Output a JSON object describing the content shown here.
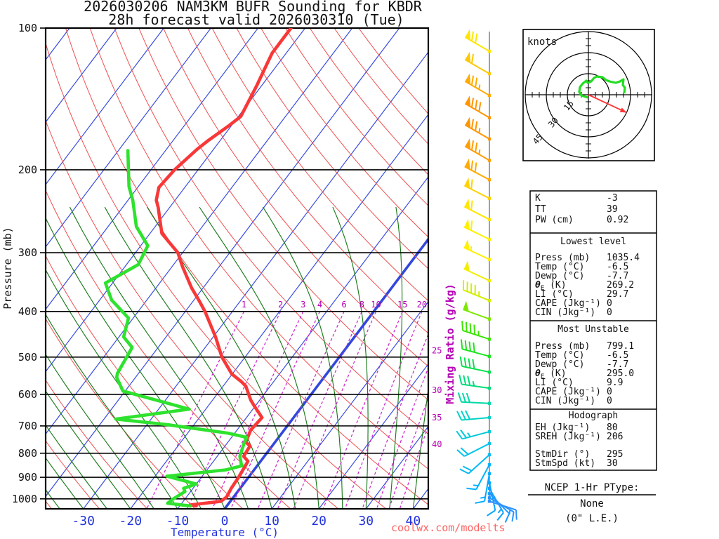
{
  "title": {
    "line1": "2026030206 NAM3KM BUFR Sounding for KBDR",
    "line2": "28h forecast valid 2026030310 (Tue)"
  },
  "watermark": "coolwx.com/modelts",
  "axes": {
    "pressure_label": "Pressure (mb)",
    "pressure_ticks": [
      100,
      200,
      300,
      400,
      500,
      600,
      700,
      800,
      900,
      1000
    ],
    "temperature_label": "Temperature (°C)",
    "temperature_ticks": [
      -30,
      -20,
      -10,
      0,
      10,
      20,
      30,
      40
    ],
    "mixing_ratio_label": "Mixing Ratio (g/kg)",
    "mixing_ratio_top_labels": [
      1,
      2,
      3,
      4,
      6,
      8,
      10,
      15,
      20
    ],
    "mixing_ratio_right_labels": [
      {
        "w": 25,
        "p": 484
      },
      {
        "w": 30,
        "p": 588
      },
      {
        "w": 35,
        "p": 672
      },
      {
        "w": 40,
        "p": 766
      }
    ]
  },
  "hodograph": {
    "unit_label": "knots",
    "ring_labels": [
      "15",
      "30",
      "45"
    ],
    "rings_kt": [
      15,
      30,
      45
    ],
    "trace_uv_kt": [
      [
        -0.5,
        -2
      ],
      [
        -5,
        -0.5
      ],
      [
        -6.5,
        2
      ],
      [
        -6,
        5.5
      ],
      [
        -4,
        8
      ],
      [
        -1.5,
        10
      ],
      [
        -0.5,
        8.5
      ],
      [
        2,
        9.5
      ],
      [
        4,
        12
      ],
      [
        6,
        13
      ],
      [
        10,
        12.5
      ],
      [
        12.5,
        10.5
      ],
      [
        15,
        9.5
      ],
      [
        19.5,
        8.5
      ],
      [
        22.5,
        9.5
      ],
      [
        25,
        11
      ],
      [
        24.5,
        7
      ],
      [
        26,
        5
      ],
      [
        25.5,
        1
      ]
    ],
    "storm_motion": {
      "dir_deg": 295,
      "spd_kt": 30
    }
  },
  "indices": {
    "top_rows": [
      [
        "K",
        "-3"
      ],
      [
        "TT",
        "39"
      ],
      [
        "PW (cm)",
        "0.92"
      ]
    ],
    "sections": [
      {
        "heading": "Lowest level",
        "rows": [
          [
            "Press (mb)",
            "1035.4"
          ],
          [
            "Temp (°C)",
            "-6.5"
          ],
          [
            "Dewp (°C)",
            "-7.7"
          ],
          [
            "θE (K)",
            "269.2"
          ],
          [
            "LI (°C)",
            "29.7"
          ],
          [
            "CAPE (Jkg⁻¹)",
            "0"
          ],
          [
            "CIN (Jkg⁻¹)",
            "0"
          ]
        ]
      },
      {
        "heading": "Most Unstable",
        "rows": [
          [
            "Press (mb)",
            "799.1"
          ],
          [
            "Temp (°C)",
            "-6.5"
          ],
          [
            "Dewp (°C)",
            "-7.7"
          ],
          [
            "θE (K)",
            "295.0"
          ],
          [
            "LI (°C)",
            "9.9"
          ],
          [
            "CAPE (Jkg⁻¹)",
            "0"
          ],
          [
            "CIN (Jkg⁻¹)",
            "0"
          ]
        ]
      },
      {
        "heading": "Hodograph",
        "rows": [
          [
            "EH (Jkg⁻¹)",
            "80"
          ],
          [
            "SREH (Jkg⁻¹)",
            "206"
          ],
          [
            "StmDir (°)",
            "295"
          ],
          [
            "StmSpd (kt)",
            "30"
          ]
        ]
      }
    ]
  },
  "ptype": {
    "heading": "NCEP 1-Hr PType:",
    "value": "None",
    "note": "(0\" L.E.)"
  },
  "colors": {
    "isotherm": "#3347dd",
    "dry_adiabat": "#ee5050",
    "moist_adiabat": "#1b7a1b",
    "mixing_ratio": "#cc22cc",
    "temperature_trace": "#f83838",
    "dewpoint_trace": "#2ee22e",
    "hodo_trace": "#22dd22",
    "storm_arrow": "#ff3333",
    "barb_axis": "#707070"
  },
  "chart_data": {
    "type": "line",
    "subtype": "skew-t-log-p-sounding",
    "title": "2026030206 NAM3KM BUFR Sounding for KBDR — 28h forecast valid 2026030310 (Tue)",
    "xlabel": "Temperature (°C)",
    "ylabel": "Pressure (mb)",
    "x_ticks": [
      -30,
      -20,
      -10,
      0,
      10,
      20,
      30,
      40
    ],
    "y_range_mb": [
      100,
      1050
    ],
    "y_scale": "log",
    "grid": {
      "isotherms_step_c": 10,
      "dry_adiabats_step_c": 10,
      "moist_adiabats_step_c": 5,
      "mixing_ratios_gkg": [
        1,
        2,
        3,
        4,
        6,
        8,
        10,
        15,
        20,
        25,
        30,
        35,
        40
      ]
    },
    "series": [
      {
        "name": "temperature",
        "units": [
          "mb",
          "°C"
        ],
        "points": [
          [
            100,
            -63
          ],
          [
            113,
            -63
          ],
          [
            133,
            -61
          ],
          [
            154,
            -59.5
          ],
          [
            161,
            -60.5
          ],
          [
            173,
            -62.5
          ],
          [
            181,
            -63.5
          ],
          [
            200,
            -65
          ],
          [
            218,
            -65.5
          ],
          [
            232,
            -64
          ],
          [
            240,
            -62.5
          ],
          [
            273,
            -57.5
          ],
          [
            300,
            -51
          ],
          [
            321,
            -47.8
          ],
          [
            356,
            -42.5
          ],
          [
            378,
            -39
          ],
          [
            400,
            -35.8
          ],
          [
            453,
            -29.5
          ],
          [
            480,
            -26.8
          ],
          [
            500,
            -24.9
          ],
          [
            543,
            -20.1
          ],
          [
            562,
            -17.1
          ],
          [
            576,
            -15.2
          ],
          [
            617,
            -11.9
          ],
          [
            638,
            -9.9
          ],
          [
            672,
            -6.7
          ],
          [
            715,
            -7.1
          ],
          [
            758,
            -6.2
          ],
          [
            772,
            -4.7
          ],
          [
            812,
            -4.4
          ],
          [
            832,
            -2.7
          ],
          [
            851,
            -2.5
          ],
          [
            900,
            -2.1
          ],
          [
            948,
            -1.9
          ],
          [
            991,
            -1.5
          ],
          [
            1012,
            -2.0
          ],
          [
            1030,
            -7.8
          ],
          [
            1035.4,
            -6.5
          ]
        ]
      },
      {
        "name": "dewpoint",
        "units": [
          "mb",
          "°C"
        ],
        "points": [
          [
            182,
            -78
          ],
          [
            217,
            -72
          ],
          [
            232,
            -69
          ],
          [
            264,
            -64
          ],
          [
            290,
            -58.5
          ],
          [
            318,
            -57.5
          ],
          [
            348,
            -61.5
          ],
          [
            378,
            -57.5
          ],
          [
            413,
            -51
          ],
          [
            453,
            -49
          ],
          [
            477,
            -45.5
          ],
          [
            541,
            -44.5
          ],
          [
            552,
            -44
          ],
          [
            590,
            -40.5
          ],
          [
            645,
            -23.5
          ],
          [
            677,
            -37.5
          ],
          [
            696,
            -25.5
          ],
          [
            725,
            -11.5
          ],
          [
            740,
            -6.8
          ],
          [
            758,
            -6.5
          ],
          [
            812,
            -5.2
          ],
          [
            851,
            -3.3
          ],
          [
            868,
            -6
          ],
          [
            895,
            -17.5
          ],
          [
            930,
            -10
          ],
          [
            950,
            -12
          ],
          [
            965,
            -11.2
          ],
          [
            1000,
            -12.5
          ],
          [
            1022,
            -13
          ],
          [
            1035.4,
            -7.7
          ]
        ]
      }
    ],
    "wind_barbs": [
      {
        "p": 112,
        "dir": 300,
        "spd": 70,
        "color": "#ffe600"
      },
      {
        "p": 125,
        "dir": 300,
        "spd": 60,
        "color": "#ffc800"
      },
      {
        "p": 139,
        "dir": 300,
        "spd": 75,
        "color": "#ffaa00"
      },
      {
        "p": 155,
        "dir": 300,
        "spd": 80,
        "color": "#ff9600"
      },
      {
        "p": 172,
        "dir": 300,
        "spd": 75,
        "color": "#ff9600"
      },
      {
        "p": 191,
        "dir": 300,
        "spd": 75,
        "color": "#ff9e00"
      },
      {
        "p": 210,
        "dir": 298,
        "spd": 70,
        "color": "#ffaa00"
      },
      {
        "p": 230,
        "dir": 297,
        "spd": 60,
        "color": "#ffd200"
      },
      {
        "p": 255,
        "dir": 297,
        "spd": 60,
        "color": "#ffe600"
      },
      {
        "p": 281,
        "dir": 296,
        "spd": 60,
        "color": "#fff000"
      },
      {
        "p": 310,
        "dir": 295,
        "spd": 55,
        "color": "#fff000"
      },
      {
        "p": 344,
        "dir": 295,
        "spd": 50,
        "color": "#f2ee00"
      },
      {
        "p": 379,
        "dir": 292,
        "spd": 45,
        "color": "#d2ee00"
      },
      {
        "p": 415,
        "dir": 290,
        "spd": 50,
        "color": "#7ee800"
      },
      {
        "p": 458,
        "dir": 288,
        "spd": 45,
        "color": "#3ce400"
      },
      {
        "p": 498,
        "dir": 285,
        "spd": 40,
        "color": "#1ce41c"
      },
      {
        "p": 538,
        "dir": 282,
        "spd": 40,
        "color": "#0ae04e"
      },
      {
        "p": 582,
        "dir": 278,
        "spd": 35,
        "color": "#00dc7a"
      },
      {
        "p": 627,
        "dir": 273,
        "spd": 30,
        "color": "#00d8a6"
      },
      {
        "p": 672,
        "dir": 265,
        "spd": 30,
        "color": "#00d2c6"
      },
      {
        "p": 720,
        "dir": 255,
        "spd": 25,
        "color": "#00cada"
      },
      {
        "p": 763,
        "dir": 243,
        "spd": 20,
        "color": "#00c2ea"
      },
      {
        "p": 806,
        "dir": 228,
        "spd": 20,
        "color": "#00baf4"
      },
      {
        "p": 846,
        "dir": 208,
        "spd": 15,
        "color": "#00b2fc"
      },
      {
        "p": 884,
        "dir": 190,
        "spd": 15,
        "color": "#00acff"
      },
      {
        "p": 925,
        "dir": 168,
        "spd": 10,
        "color": "#00a6ff"
      },
      {
        "p": 950,
        "dir": 150,
        "spd": 15,
        "color": "#10a0ff"
      },
      {
        "p": 975,
        "dir": 135,
        "spd": 10,
        "color": "#1c9aff"
      },
      {
        "p": 995,
        "dir": 120,
        "spd": 15,
        "color": "#2894ff"
      },
      {
        "p": 1012,
        "dir": 108,
        "spd": 10,
        "color": "#2e90ff"
      }
    ]
  }
}
